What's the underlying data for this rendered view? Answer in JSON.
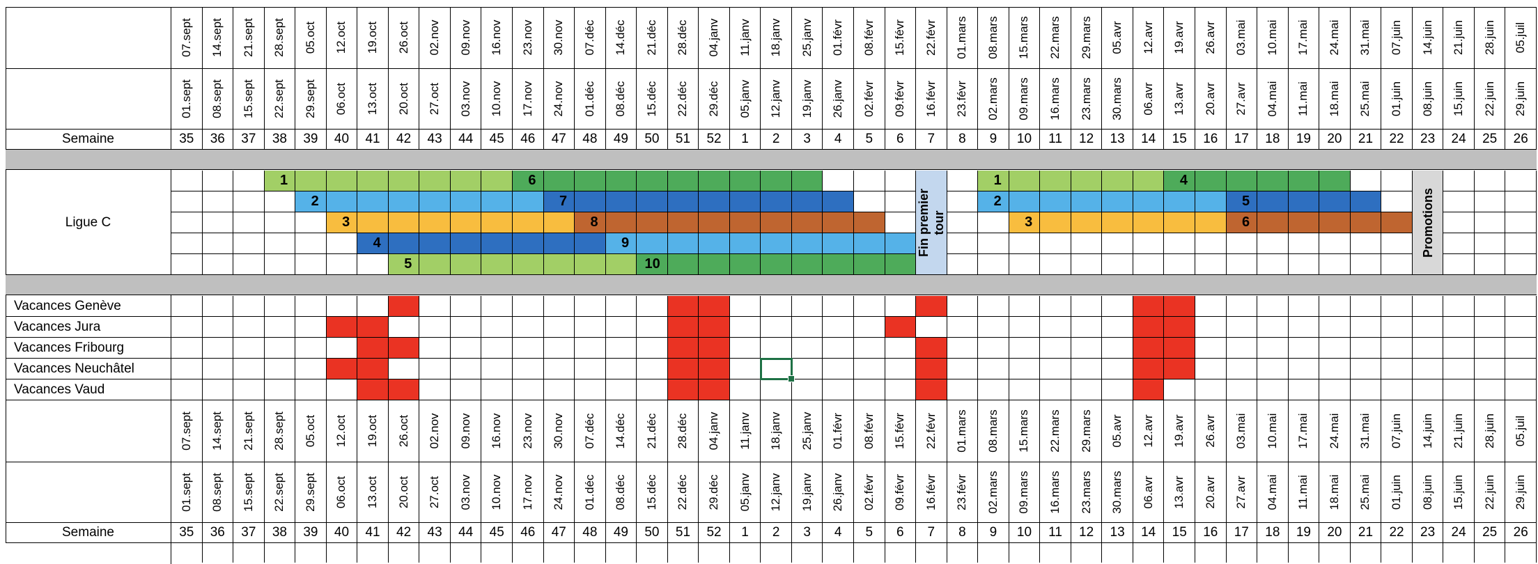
{
  "weeks": [
    {
      "num": "35",
      "date1": "07.sept",
      "date2": "01.sept"
    },
    {
      "num": "36",
      "date1": "14.sept",
      "date2": "08.sept"
    },
    {
      "num": "37",
      "date1": "21.sept",
      "date2": "15.sept"
    },
    {
      "num": "38",
      "date1": "28.sept",
      "date2": "22.sept"
    },
    {
      "num": "39",
      "date1": "05.oct",
      "date2": "29.sept"
    },
    {
      "num": "40",
      "date1": "12.oct",
      "date2": "06.oct"
    },
    {
      "num": "41",
      "date1": "19.oct",
      "date2": "13.oct"
    },
    {
      "num": "42",
      "date1": "26.oct",
      "date2": "20.oct"
    },
    {
      "num": "43",
      "date1": "02.nov",
      "date2": "27.oct"
    },
    {
      "num": "44",
      "date1": "09.nov",
      "date2": "03.nov"
    },
    {
      "num": "45",
      "date1": "16.nov",
      "date2": "10.nov"
    },
    {
      "num": "46",
      "date1": "23.nov",
      "date2": "17.nov"
    },
    {
      "num": "47",
      "date1": "30.nov",
      "date2": "24.nov"
    },
    {
      "num": "48",
      "date1": "07.déc",
      "date2": "01.déc"
    },
    {
      "num": "49",
      "date1": "14.déc",
      "date2": "08.déc"
    },
    {
      "num": "50",
      "date1": "21.déc",
      "date2": "15.déc"
    },
    {
      "num": "51",
      "date1": "28.déc",
      "date2": "22.déc"
    },
    {
      "num": "52",
      "date1": "04.janv",
      "date2": "29.déc"
    },
    {
      "num": "1",
      "date1": "11.janv",
      "date2": "05.janv"
    },
    {
      "num": "2",
      "date1": "18.janv",
      "date2": "12.janv"
    },
    {
      "num": "3",
      "date1": "25.janv",
      "date2": "19.janv"
    },
    {
      "num": "4",
      "date1": "01.févr",
      "date2": "26.janv"
    },
    {
      "num": "5",
      "date1": "08.févr",
      "date2": "02.févr"
    },
    {
      "num": "6",
      "date1": "15.févr",
      "date2": "09.févr"
    },
    {
      "num": "7",
      "date1": "22.févr",
      "date2": "16.févr"
    },
    {
      "num": "8",
      "date1": "01.mars",
      "date2": "23.févr"
    },
    {
      "num": "9",
      "date1": "08.mars",
      "date2": "02.mars"
    },
    {
      "num": "10",
      "date1": "15.mars",
      "date2": "09.mars"
    },
    {
      "num": "11",
      "date1": "22.mars",
      "date2": "16.mars"
    },
    {
      "num": "12",
      "date1": "29.mars",
      "date2": "23.mars"
    },
    {
      "num": "13",
      "date1": "05.avr",
      "date2": "30.mars"
    },
    {
      "num": "14",
      "date1": "12.avr",
      "date2": "06.avr"
    },
    {
      "num": "15",
      "date1": "19.avr",
      "date2": "13.avr"
    },
    {
      "num": "16",
      "date1": "26.avr",
      "date2": "20.avr"
    },
    {
      "num": "17",
      "date1": "03.mai",
      "date2": "27.avr"
    },
    {
      "num": "18",
      "date1": "10.mai",
      "date2": "04.mai"
    },
    {
      "num": "19",
      "date1": "17.mai",
      "date2": "11.mai"
    },
    {
      "num": "20",
      "date1": "24.mai",
      "date2": "18.mai"
    },
    {
      "num": "21",
      "date1": "31.mai",
      "date2": "25.mai"
    },
    {
      "num": "22",
      "date1": "07.juin",
      "date2": "01.juin"
    },
    {
      "num": "23",
      "date1": "14.juin",
      "date2": "08.juin"
    },
    {
      "num": "24",
      "date1": "21.juin",
      "date2": "15.juin"
    },
    {
      "num": "25",
      "date1": "28.juin",
      "date2": "22.juin"
    },
    {
      "num": "26",
      "date1": "05.juil",
      "date2": "29.juin"
    }
  ],
  "labels": {
    "semaine": "Semaine",
    "ligue": "Ligue C",
    "fin_premier_tour": "Fin premier\ntour",
    "promotions": "Promotions"
  },
  "colors": {
    "light_green": "#a2cf66",
    "dark_green": "#4eab5a",
    "light_blue": "#55b2e8",
    "dark_blue": "#2e6fc0",
    "yellow": "#f8bd3f",
    "brown": "#bf6530",
    "red": "#ea3323",
    "separator_gray": "#bfbfbf",
    "fin_tour_blue": "#c3d7ee",
    "promotions_gray": "#d8d8d8",
    "selection_green": "#1e7145"
  },
  "league_rows": [
    {
      "segments": [
        {
          "start": 3,
          "end": 10,
          "color": "light_green"
        },
        {
          "start": 11,
          "end": 20,
          "color": "dark_green"
        },
        {
          "start": 26,
          "end": 31,
          "color": "light_green"
        },
        {
          "start": 32,
          "end": 37,
          "color": "dark_green"
        }
      ],
      "numbers": [
        {
          "col": 3,
          "text": "1"
        },
        {
          "col": 11,
          "text": "6"
        },
        {
          "col": 26,
          "text": "1"
        },
        {
          "col": 32,
          "text": "4"
        }
      ]
    },
    {
      "segments": [
        {
          "start": 4,
          "end": 11,
          "color": "light_blue"
        },
        {
          "start": 12,
          "end": 21,
          "color": "dark_blue"
        },
        {
          "start": 26,
          "end": 33,
          "color": "light_blue"
        },
        {
          "start": 34,
          "end": 38,
          "color": "dark_blue"
        }
      ],
      "numbers": [
        {
          "col": 4,
          "text": "2"
        },
        {
          "col": 12,
          "text": "7"
        },
        {
          "col": 26,
          "text": "2"
        },
        {
          "col": 34,
          "text": "5"
        }
      ]
    },
    {
      "segments": [
        {
          "start": 5,
          "end": 12,
          "color": "yellow"
        },
        {
          "start": 13,
          "end": 22,
          "color": "brown"
        },
        {
          "start": 27,
          "end": 33,
          "color": "yellow"
        },
        {
          "start": 34,
          "end": 39,
          "color": "brown"
        }
      ],
      "numbers": [
        {
          "col": 5,
          "text": "3"
        },
        {
          "col": 13,
          "text": "8"
        },
        {
          "col": 27,
          "text": "3"
        },
        {
          "col": 34,
          "text": "6"
        }
      ]
    },
    {
      "segments": [
        {
          "start": 6,
          "end": 13,
          "color": "dark_blue"
        },
        {
          "start": 14,
          "end": 23,
          "color": "light_blue"
        }
      ],
      "numbers": [
        {
          "col": 6,
          "text": "4"
        },
        {
          "col": 14,
          "text": "9"
        }
      ]
    },
    {
      "segments": [
        {
          "start": 7,
          "end": 14,
          "color": "light_green"
        },
        {
          "start": 15,
          "end": 23,
          "color": "dark_green"
        }
      ],
      "numbers": [
        {
          "col": 7,
          "text": "5"
        },
        {
          "col": 15,
          "text": "10"
        }
      ]
    }
  ],
  "vacations": [
    {
      "label": "Vacances Genève",
      "red_cols": [
        7,
        16,
        17,
        24,
        31,
        32
      ]
    },
    {
      "label": "Vacances Jura",
      "red_cols": [
        5,
        6,
        16,
        17,
        23,
        31,
        32
      ]
    },
    {
      "label": "Vacances Fribourg",
      "red_cols": [
        6,
        7,
        16,
        17,
        24,
        31,
        32
      ]
    },
    {
      "label": "Vacances Neuchâtel",
      "red_cols": [
        5,
        6,
        16,
        17,
        24,
        31,
        32
      ]
    },
    {
      "label": "Vacances Vaud",
      "red_cols": [
        6,
        7,
        16,
        17,
        24,
        31
      ]
    }
  ]
}
